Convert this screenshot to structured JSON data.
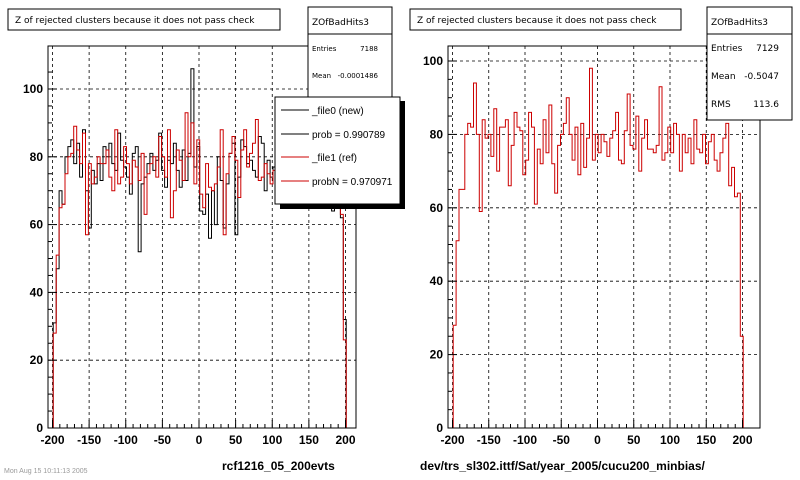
{
  "colors": {
    "background": "#ffffff",
    "frame": "#000000",
    "grid": "#000000",
    "hist_new": "#000000",
    "hist_ref": "#cc0000",
    "legend_shadow": "#000000"
  },
  "pads": [
    {
      "title": "Z of rejected clusters  because it does not pass check",
      "stats": {
        "name": "ZOfBadHits3",
        "rows": [
          {
            "label": "Entries",
            "value": "7188"
          },
          {
            "label": "Mean",
            "value": "-0.0001486"
          }
        ]
      },
      "legend": {
        "entries": [
          {
            "label": "_file0 (new)",
            "color_key": "hist_new"
          },
          {
            "label": "prob = 0.990789",
            "color_key": "hist_new"
          },
          {
            "label": "_file1 (ref)",
            "color_key": "hist_ref"
          },
          {
            "label": "probN = 0.970971",
            "color_key": "hist_ref"
          }
        ]
      },
      "caption": "rcf1216_05_200evts",
      "footer": "Mon Aug 15 10:11:13 2005"
    },
    {
      "title": "Z of rejected clusters  because it does not pass check",
      "stats": {
        "name": "ZOfBadHits3",
        "rows": [
          {
            "label": "Entries",
            "value": "7129"
          },
          {
            "label": "Mean",
            "value": "-0.5047"
          },
          {
            "label": "RMS",
            "value": "113.6"
          }
        ]
      },
      "caption": "dev/trs_sl302.ittf/Sat/year_2005/cucu200_minbias/"
    }
  ],
  "chart_data": [
    {
      "type": "line",
      "step": true,
      "title": "Z of rejected clusters  because it does not pass check",
      "xlabel": "rcf1216_05_200evts",
      "ylabel": "",
      "xlim": [
        -205,
        210
      ],
      "ylim": [
        0,
        108
      ],
      "xticks": [
        -200,
        -150,
        -100,
        -50,
        0,
        50,
        100,
        150,
        200
      ],
      "yticks": [
        0,
        20,
        40,
        60,
        80,
        100
      ],
      "grid": true,
      "legend_position": "top-right",
      "bin_start": -203,
      "bin_width": 4,
      "series": [
        {
          "name": "_file0 (new)",
          "color_key": "hist_new",
          "values": [
            0,
            31,
            47,
            70,
            66,
            80,
            83,
            85,
            78,
            84,
            74,
            88,
            70,
            59,
            76,
            72,
            78,
            73,
            83,
            80,
            84,
            78,
            76,
            87,
            79,
            77,
            74,
            69,
            81,
            83,
            52,
            72,
            74,
            78,
            81,
            76,
            79,
            87,
            76,
            71,
            79,
            78,
            84,
            76,
            71,
            82,
            73,
            81,
            106,
            77,
            83,
            64,
            63,
            69,
            56,
            70,
            60,
            80,
            73,
            59,
            72,
            81,
            84,
            57,
            74,
            85,
            83,
            78,
            79,
            76,
            74,
            86,
            84,
            70,
            79,
            74,
            77,
            72,
            76,
            67,
            74,
            75,
            80,
            78,
            69,
            70,
            72,
            76,
            71,
            81,
            70,
            76,
            75,
            71,
            65,
            76,
            64,
            76,
            66,
            62,
            32,
            0
          ]
        },
        {
          "name": "_file1 (ref)",
          "color_key": "hist_ref",
          "values": [
            0,
            28,
            51,
            65,
            66,
            75,
            80,
            81,
            89,
            82,
            78,
            87,
            57,
            78,
            72,
            74,
            80,
            78,
            78,
            82,
            74,
            70,
            88,
            72,
            74,
            83,
            78,
            72,
            79,
            77,
            73,
            81,
            63,
            75,
            78,
            80,
            74,
            86,
            80,
            74,
            88,
            62,
            70,
            82,
            79,
            73,
            93,
            80,
            90,
            72,
            85,
            69,
            65,
            78,
            71,
            70,
            72,
            77,
            88,
            57,
            75,
            81,
            86,
            79,
            68,
            82,
            88,
            77,
            81,
            84,
            91,
            73,
            74,
            78,
            75,
            72,
            76,
            80,
            84,
            77,
            70,
            86,
            74,
            69,
            75,
            78,
            80,
            73,
            82,
            77,
            71,
            74,
            68,
            79,
            77,
            84,
            66,
            75,
            65,
            63,
            26,
            0
          ]
        }
      ]
    },
    {
      "type": "line",
      "step": true,
      "title": "Z of rejected clusters  because it does not pass check",
      "xlabel": "dev/trs_sl302.ittf/Sat/year_2005/cucu200_minbias/",
      "ylabel": "",
      "xlim": [
        -205,
        210
      ],
      "ylim": [
        0,
        103
      ],
      "xticks": [
        -200,
        -150,
        -100,
        -50,
        0,
        50,
        100,
        150,
        200
      ],
      "yticks": [
        0,
        20,
        40,
        60,
        80,
        100
      ],
      "grid": true,
      "bin_start": -203,
      "bin_width": 4,
      "series": [
        {
          "name": "ZOfBadHits3",
          "color_key": "hist_ref",
          "values": [
            0,
            28,
            51,
            65,
            65,
            80,
            83,
            82,
            94,
            80,
            59,
            84,
            79,
            80,
            74,
            87,
            70,
            82,
            82,
            84,
            66,
            77,
            86,
            82,
            81,
            69,
            73,
            86,
            82,
            61,
            76,
            72,
            84,
            75,
            88,
            72,
            64,
            77,
            80,
            83,
            90,
            80,
            73,
            82,
            69,
            83,
            71,
            79,
            98,
            73,
            80,
            75,
            80,
            78,
            74,
            79,
            81,
            86,
            73,
            72,
            81,
            91,
            77,
            76,
            85,
            70,
            79,
            84,
            76,
            76,
            75,
            77,
            93,
            73,
            75,
            82,
            75,
            83,
            80,
            70,
            80,
            75,
            79,
            72,
            84,
            76,
            75,
            80,
            72,
            78,
            80,
            73,
            70,
            75,
            79,
            83,
            66,
            71,
            63,
            64,
            25,
            0
          ]
        }
      ]
    }
  ]
}
